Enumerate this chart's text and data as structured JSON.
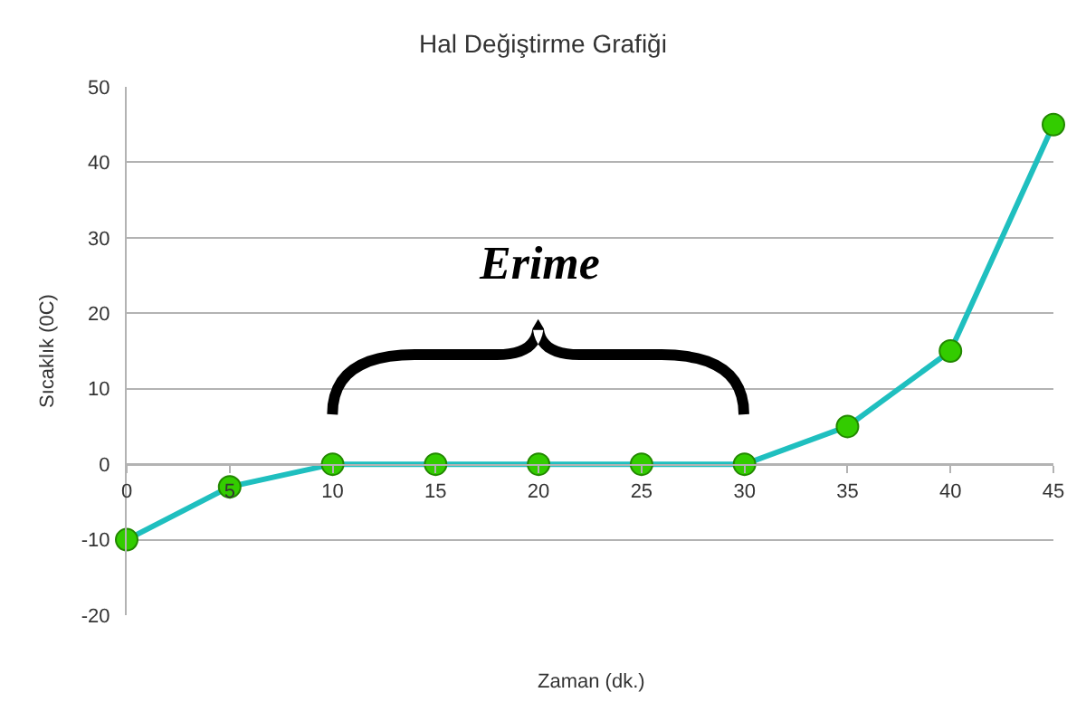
{
  "chart_data": {
    "type": "line",
    "title": "Hal Değiştirme Grafiği",
    "xlabel": "Zaman (dk.)",
    "ylabel": "Sıcaklık (0C)",
    "x": [
      0,
      5,
      10,
      15,
      20,
      25,
      30,
      35,
      40,
      45
    ],
    "series": [
      {
        "color": "#1fbfbf",
        "colors": [
          "#33cc00",
          "#33cc00",
          "#33cc00",
          "#33cc00",
          "#33cc00",
          "#33cc00",
          "#33cc00",
          "#33cc00",
          "#33cc00",
          "#33cc00"
        ],
        "values": [
          -10,
          -3,
          0,
          0,
          0,
          0,
          0,
          5,
          15,
          45
        ]
      }
    ],
    "marker": "circle",
    "line_style": "solid",
    "xlim": [
      0,
      45
    ],
    "xticks": [
      0,
      5,
      10,
      15,
      20,
      25,
      30,
      35,
      40,
      45
    ],
    "ylim": [
      -20,
      50
    ],
    "yticks": [
      -20,
      -10,
      0,
      10,
      20,
      30,
      40,
      50
    ],
    "grid": "y",
    "annotations": [
      "Erime"
    ]
  }
}
